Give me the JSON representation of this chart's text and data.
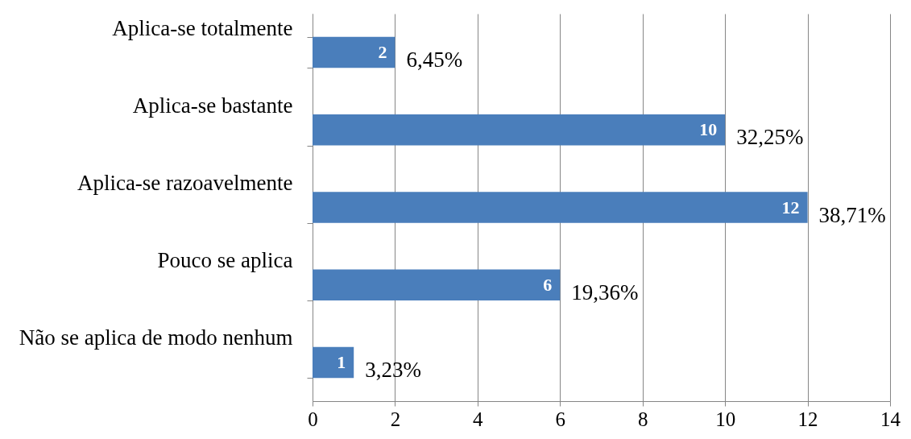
{
  "chart_data": {
    "type": "bar",
    "orientation": "horizontal",
    "categories": [
      "Aplica-se totalmente",
      "Aplica-se bastante",
      "Aplica-se razoavelmente",
      "Pouco se aplica",
      "Não se aplica de modo nenhum"
    ],
    "values": [
      2,
      10,
      12,
      6,
      1
    ],
    "color": "#4a7ebb",
    "data_labels": true,
    "annotations": [
      {
        "text": "6,45%",
        "x": 2,
        "y": "Aplica-se totalmente"
      },
      {
        "text": "32,25%",
        "x": 10,
        "y": "Aplica-se bastante"
      },
      {
        "text": "38,71%",
        "x": 12,
        "y": "Aplica-se razoavelmente"
      },
      {
        "text": "19,36%",
        "x": 6,
        "y": "Pouco se aplica"
      },
      {
        "text": "3,23%",
        "x": 1,
        "y": "Não se aplica de modo nenhum"
      }
    ],
    "xlim": [
      0,
      14
    ],
    "xticks": [
      0,
      2,
      4,
      6,
      8,
      10,
      12,
      14
    ],
    "grid": "x"
  }
}
